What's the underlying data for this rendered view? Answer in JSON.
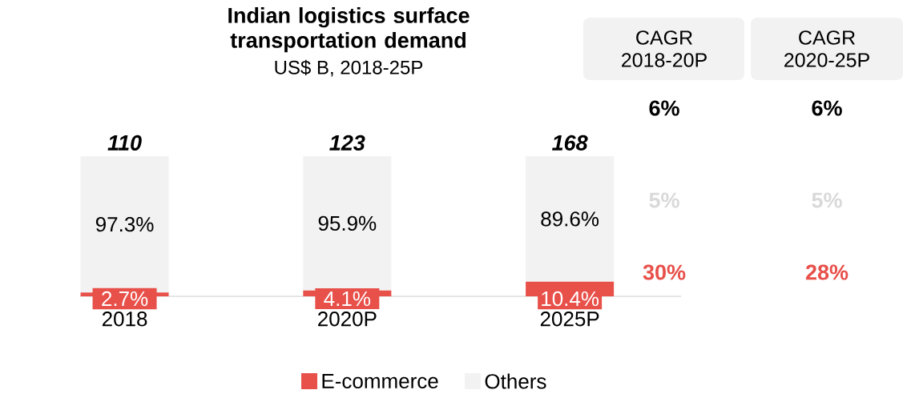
{
  "chart_data": {
    "type": "bar",
    "stacked": true,
    "title": "Indian logistics surface transportation demand",
    "subtitle": "US$ B, 2018-25P",
    "categories": [
      "2018",
      "2020P",
      "2025P"
    ],
    "series": [
      {
        "name": "E-commerce",
        "color": "#e8504a",
        "values": [
          2.7,
          4.1,
          10.4
        ],
        "value_labels": [
          "2.7%",
          "4.1%",
          "10.4%"
        ]
      },
      {
        "name": "Others",
        "color": "#f2f2f2",
        "values": [
          97.3,
          95.9,
          89.6
        ],
        "value_labels": [
          "97.3%",
          "95.9%",
          "89.6%"
        ]
      }
    ],
    "annotations": [
      {
        "text": "110",
        "x": "2018",
        "y": 100
      },
      {
        "text": "123",
        "x": "2020P",
        "y": 100
      },
      {
        "text": "168",
        "x": "2025P",
        "y": 100
      },
      "CAGR 2018-20P",
      "CAGR 2020-25P",
      "6%",
      "6%",
      "5%",
      "5%",
      "30%",
      "28%"
    ],
    "legend": "bottom"
  }
}
